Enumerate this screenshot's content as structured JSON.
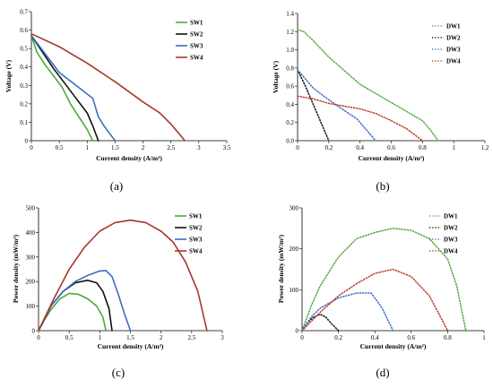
{
  "chart_data": [
    {
      "type": "line",
      "panel_label": "(a)",
      "xlabel": "Current density (A/m²)",
      "ylabel": "Voltage (V)",
      "xlim": [
        0,
        3.5
      ],
      "ylim": [
        0,
        0.7
      ],
      "xticks": [
        "0",
        "0.5",
        "1",
        "1.5",
        "2",
        "2.5",
        "3",
        "3.5"
      ],
      "yticks": [
        "0",
        "0.1",
        "0.2",
        "0.3",
        "0.4",
        "0.5",
        "0.6",
        "0.7"
      ],
      "legend": "top-right",
      "series": [
        {
          "name": "SW1",
          "color": "#4ea83a",
          "dash": "solid",
          "x": [
            0,
            0.1,
            0.25,
            0.4,
            0.55,
            0.7,
            0.85,
            1.0,
            1.1
          ],
          "y": [
            0.57,
            0.48,
            0.41,
            0.35,
            0.29,
            0.2,
            0.13,
            0.06,
            0
          ]
        },
        {
          "name": "SW2",
          "color": "#111111",
          "dash": "solid",
          "x": [
            0,
            0.2,
            0.4,
            0.6,
            0.8,
            1.0,
            1.1,
            1.2
          ],
          "y": [
            0.57,
            0.48,
            0.39,
            0.31,
            0.23,
            0.15,
            0.08,
            0
          ]
        },
        {
          "name": "SW3",
          "color": "#3a6fc0",
          "dash": "solid",
          "x": [
            0,
            0.2,
            0.5,
            0.8,
            1.1,
            1.2,
            1.3,
            1.4,
            1.5
          ],
          "y": [
            0.57,
            0.49,
            0.37,
            0.3,
            0.23,
            0.13,
            0.08,
            0.04,
            0
          ]
        },
        {
          "name": "SW4",
          "color": "#a8372c",
          "dash": "solid",
          "x": [
            0,
            0.5,
            1.0,
            1.5,
            2.0,
            2.3,
            2.5,
            2.75
          ],
          "y": [
            0.58,
            0.51,
            0.42,
            0.32,
            0.21,
            0.15,
            0.09,
            0
          ]
        }
      ]
    },
    {
      "type": "line",
      "panel_label": "(b)",
      "xlabel": "Current density (A/m²)",
      "ylabel": "Voltage (V)",
      "xlim": [
        0,
        1.2
      ],
      "ylim": [
        0,
        1.4
      ],
      "xticks": [
        "0",
        "0.2",
        "0.4",
        "0.6",
        "0.8",
        "1",
        "1.2"
      ],
      "yticks": [
        "0.0",
        "0.2",
        "0.4",
        "0.6",
        "0.8",
        "1.0",
        "1.2",
        "1.4"
      ],
      "legend": "top-right",
      "series": [
        {
          "name": "DW1",
          "color": "#4ea83a",
          "dash": "dotted",
          "x": [
            0,
            0.04,
            0.1,
            0.2,
            0.3,
            0.4,
            0.5,
            0.6,
            0.7,
            0.8,
            0.85,
            0.9
          ],
          "y": [
            1.22,
            1.2,
            1.1,
            0.92,
            0.77,
            0.62,
            0.52,
            0.42,
            0.32,
            0.22,
            0.12,
            0
          ]
        },
        {
          "name": "DW2",
          "color": "#111111",
          "dash": "dotted",
          "x": [
            0,
            0.05,
            0.1,
            0.15,
            0.2
          ],
          "y": [
            0.78,
            0.6,
            0.4,
            0.2,
            0
          ]
        },
        {
          "name": "DW3",
          "color": "#3a6fc0",
          "dash": "dotted",
          "x": [
            0,
            0.05,
            0.1,
            0.2,
            0.3,
            0.38,
            0.44,
            0.5
          ],
          "y": [
            0.78,
            0.68,
            0.58,
            0.45,
            0.33,
            0.24,
            0.12,
            0
          ]
        },
        {
          "name": "DW4",
          "color": "#c0392b",
          "dash": "dotted",
          "x": [
            0,
            0.1,
            0.2,
            0.3,
            0.4,
            0.5,
            0.6,
            0.7,
            0.8
          ],
          "y": [
            0.49,
            0.46,
            0.41,
            0.38,
            0.35,
            0.3,
            0.22,
            0.13,
            0
          ]
        }
      ]
    },
    {
      "type": "line",
      "panel_label": "(c)",
      "xlabel": "Current density (A/m²)",
      "ylabel": "Power density (mW/m²)",
      "xlim": [
        0,
        3
      ],
      "ylim": [
        0,
        500
      ],
      "xticks": [
        "0",
        "0.5",
        "1",
        "1.5",
        "2",
        "2.5",
        "3"
      ],
      "yticks": [
        "0",
        "100",
        "200",
        "300",
        "400",
        "500"
      ],
      "legend": "top-right",
      "series": [
        {
          "name": "SW1",
          "color": "#4ea83a",
          "dash": "solid",
          "x": [
            0,
            0.1,
            0.2,
            0.35,
            0.5,
            0.65,
            0.8,
            0.95,
            1.05,
            1.1
          ],
          "y": [
            0,
            45,
            85,
            130,
            152,
            148,
            130,
            100,
            55,
            0
          ]
        },
        {
          "name": "SW2",
          "color": "#111111",
          "dash": "solid",
          "x": [
            0,
            0.2,
            0.4,
            0.6,
            0.8,
            0.95,
            1.05,
            1.15,
            1.2
          ],
          "y": [
            0,
            100,
            160,
            195,
            205,
            195,
            160,
            90,
            0
          ]
        },
        {
          "name": "SW3",
          "color": "#3a6fc0",
          "dash": "solid",
          "x": [
            0,
            0.2,
            0.4,
            0.6,
            0.8,
            1.0,
            1.1,
            1.2,
            1.3,
            1.4,
            1.5
          ],
          "y": [
            0,
            100,
            160,
            200,
            225,
            243,
            245,
            220,
            150,
            70,
            0
          ]
        },
        {
          "name": "SW4",
          "color": "#a8372c",
          "dash": "solid",
          "x": [
            0,
            0.25,
            0.5,
            0.75,
            1.0,
            1.25,
            1.5,
            1.75,
            2.0,
            2.2,
            2.4,
            2.6,
            2.75
          ],
          "y": [
            0,
            130,
            250,
            340,
            405,
            440,
            450,
            440,
            405,
            360,
            280,
            160,
            0
          ]
        }
      ]
    },
    {
      "type": "line",
      "panel_label": "(d)",
      "xlabel": "Current density (A/m²)",
      "ylabel": "Power density (mW/m²)",
      "xlim": [
        0,
        1
      ],
      "ylim": [
        0,
        300
      ],
      "xticks": [
        "0",
        "0.2",
        "0.4",
        "0.6",
        "0.8",
        "1"
      ],
      "yticks": [
        "0",
        "100",
        "200",
        "300"
      ],
      "legend": "top-right",
      "series": [
        {
          "name": "DW1",
          "color": "#4ea83a",
          "dash": "dotted",
          "x": [
            0,
            0.05,
            0.1,
            0.2,
            0.3,
            0.4,
            0.5,
            0.6,
            0.7,
            0.8,
            0.85,
            0.9
          ],
          "y": [
            0,
            60,
            110,
            180,
            225,
            240,
            250,
            245,
            225,
            175,
            110,
            0
          ]
        },
        {
          "name": "DW2",
          "color": "#111111",
          "dash": "dotted",
          "x": [
            0,
            0.03,
            0.06,
            0.1,
            0.13,
            0.16,
            0.2
          ],
          "y": [
            0,
            20,
            32,
            40,
            33,
            18,
            0
          ]
        },
        {
          "name": "DW3",
          "color": "#3a6fc0",
          "dash": "dotted",
          "x": [
            0,
            0.05,
            0.1,
            0.2,
            0.3,
            0.38,
            0.44,
            0.5
          ],
          "y": [
            0,
            33,
            55,
            80,
            92,
            92,
            55,
            0
          ]
        },
        {
          "name": "DW4",
          "color": "#c0392b",
          "dash": "dotted",
          "x": [
            0,
            0.1,
            0.2,
            0.3,
            0.4,
            0.5,
            0.6,
            0.7,
            0.8
          ],
          "y": [
            0,
            45,
            85,
            115,
            140,
            150,
            132,
            85,
            0
          ]
        }
      ]
    }
  ]
}
